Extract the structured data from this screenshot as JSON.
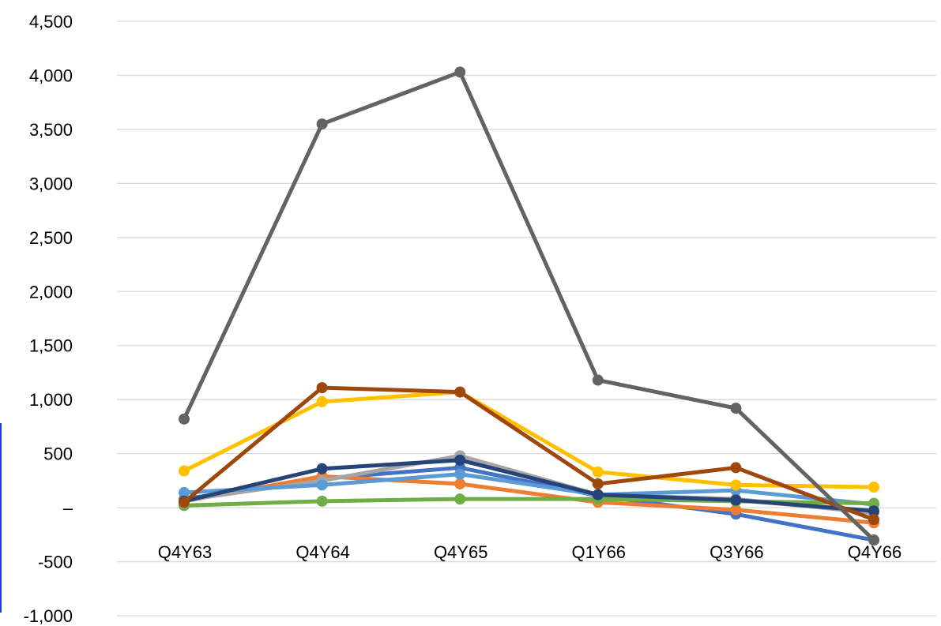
{
  "chart_data": {
    "type": "line",
    "categories": [
      "Q4Y63",
      "Q4Y64",
      "Q4Y65",
      "Q1Y66",
      "Q3Y66",
      "Q4Y66"
    ],
    "ylim": [
      -1000,
      4500
    ],
    "yticks": [
      -1000,
      -500,
      0,
      500,
      1000,
      1500,
      2000,
      2500,
      3000,
      3500,
      4000,
      4500
    ],
    "ytick_labels": [
      "-1,000",
      "-500",
      "–",
      "500",
      "1,000",
      "1,500",
      "2,000",
      "2,500",
      "3,000",
      "3,500",
      "4,000",
      "4,500"
    ],
    "grid": true,
    "legend": "none",
    "series": [
      {
        "color": "#4472c4",
        "values": [
          80,
          270,
          370,
          110,
          -60,
          -300
        ]
      },
      {
        "color": "#ed7d31",
        "values": [
          60,
          290,
          220,
          50,
          -20,
          -140
        ]
      },
      {
        "color": "#a5a5a5",
        "values": [
          70,
          250,
          480,
          120,
          80,
          -50
        ]
      },
      {
        "color": "#5b9bd5",
        "values": [
          140,
          210,
          310,
          120,
          160,
          30
        ]
      },
      {
        "color": "#70ad47",
        "values": [
          20,
          60,
          80,
          80,
          60,
          40
        ]
      },
      {
        "color": "#ffc000",
        "values": [
          340,
          980,
          1070,
          330,
          210,
          190
        ]
      },
      {
        "color": "#264478",
        "values": [
          60,
          360,
          440,
          120,
          70,
          -30
        ]
      },
      {
        "color": "#9e480e",
        "values": [
          50,
          1110,
          1070,
          220,
          370,
          -110
        ]
      },
      {
        "color": "#636363",
        "values": [
          820,
          3550,
          4030,
          1180,
          920,
          -300
        ]
      }
    ]
  }
}
